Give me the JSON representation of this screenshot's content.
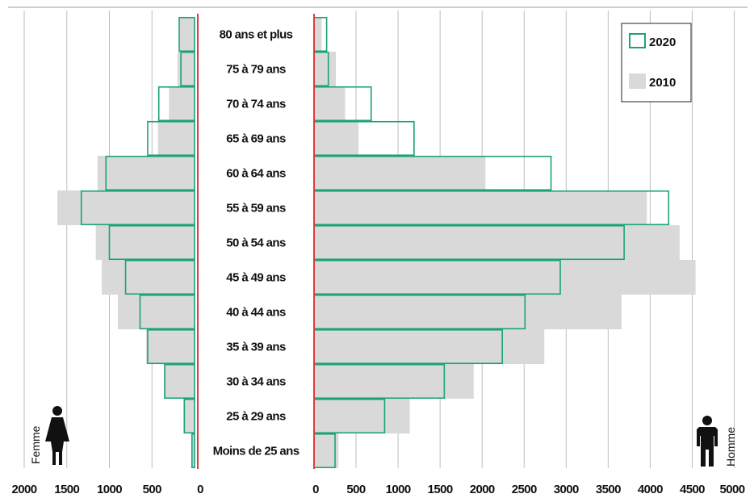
{
  "chart_data": {
    "type": "bar",
    "orientation": "horizontal-pyramid",
    "categories": [
      "80 ans et plus",
      "75 à 79 ans",
      "70 à 74 ans",
      "65 à 69 ans",
      "60 à 64 ans",
      "55 à 59 ans",
      "50 à 54 ans",
      "45 à 49 ans",
      "40 à 44 ans",
      "35 à 39 ans",
      "30 à 34 ans",
      "25 à 29 ans",
      "Moins de 25 ans"
    ],
    "series": [
      {
        "name": "2020",
        "side": "femme",
        "values": [
          180,
          160,
          420,
          550,
          1040,
          1330,
          1000,
          810,
          640,
          550,
          350,
          120,
          30
        ]
      },
      {
        "name": "2020",
        "side": "homme",
        "values": [
          150,
          170,
          680,
          1190,
          2820,
          4220,
          3690,
          2930,
          2510,
          2240,
          1550,
          840,
          250
        ]
      },
      {
        "name": "2010",
        "side": "femme",
        "values": [
          180,
          200,
          300,
          430,
          1140,
          1610,
          1160,
          1090,
          900,
          570,
          360,
          130,
          40
        ]
      },
      {
        "name": "2010",
        "side": "homme",
        "values": [
          90,
          260,
          370,
          530,
          2040,
          3960,
          4350,
          4540,
          3660,
          2740,
          1900,
          1140,
          290
        ]
      }
    ],
    "left_ticks": [
      "2000",
      "1500",
      "1000",
      "500",
      "0"
    ],
    "right_ticks": [
      "0",
      "500",
      "1000",
      "1500",
      "2000",
      "2500",
      "3000",
      "3500",
      "4000",
      "4500",
      "5000"
    ],
    "left_xlim": [
      0,
      2000
    ],
    "right_xlim": [
      0,
      5000
    ],
    "legend": {
      "position": "top-right",
      "items": [
        "2020",
        "2010"
      ]
    },
    "left_label": "Femme",
    "right_label": "Homme",
    "colors": {
      "s2020": "#1aa37a",
      "s2010": "#d9d9d9",
      "axis": "#e23b3b",
      "grid": "#bdbdbd"
    }
  }
}
